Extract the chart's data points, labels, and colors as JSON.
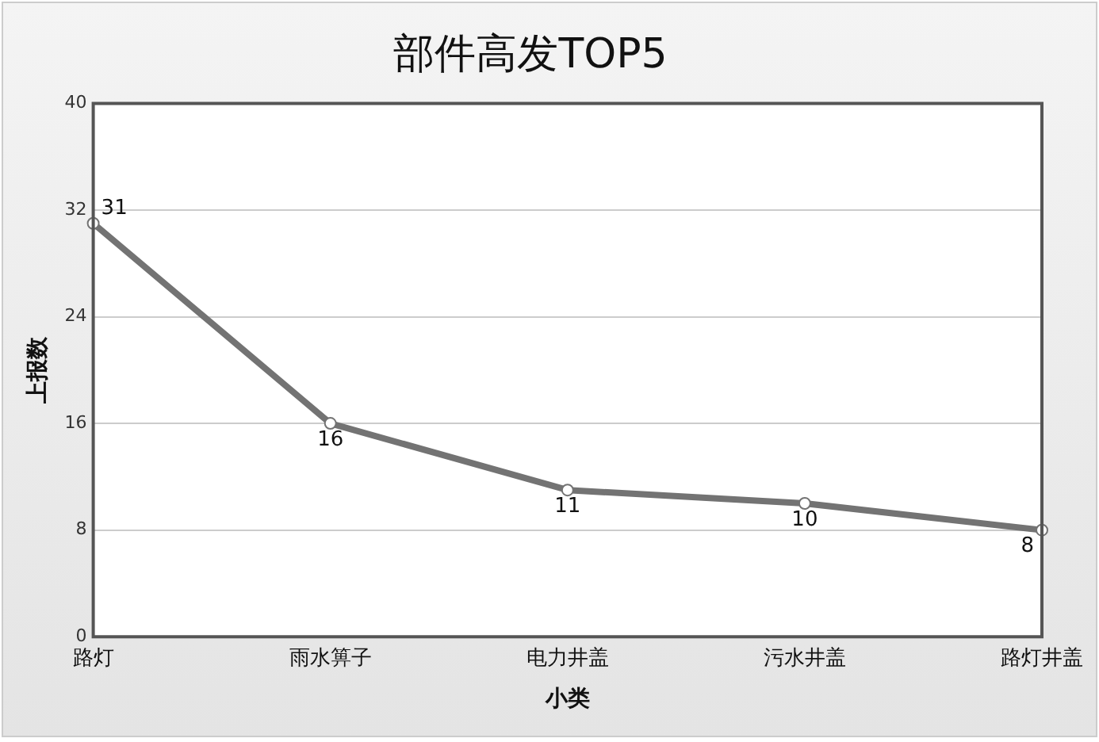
{
  "chart_data": {
    "type": "line",
    "title": "部件高发TOP5",
    "xlabel": "小类",
    "ylabel": "上报数",
    "categories": [
      "路灯",
      "雨水箅子",
      "电力井盖",
      "污水井盖",
      "路灯井盖"
    ],
    "values": [
      31,
      16,
      11,
      10,
      8
    ],
    "color": "#737373",
    "ylim": [
      0,
      40
    ],
    "yticks": [
      0,
      8,
      16,
      24,
      32,
      40
    ],
    "grid": "y",
    "marker": "circle",
    "line_style": "solid",
    "data_labels": true,
    "legend": false
  }
}
